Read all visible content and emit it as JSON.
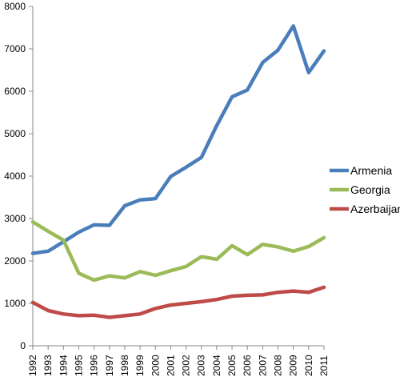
{
  "chart_data": {
    "type": "line",
    "title": "",
    "xlabel": "",
    "ylabel": "",
    "x": [
      "1992",
      "1993",
      "1994",
      "1995",
      "1996",
      "1997",
      "1998",
      "1999",
      "2000",
      "2001",
      "2002",
      "2003",
      "2004",
      "2005",
      "2006",
      "2007",
      "2008",
      "2009",
      "2010",
      "2011"
    ],
    "ylim": [
      0,
      8000
    ],
    "yticks": [
      0,
      1000,
      2000,
      3000,
      4000,
      5000,
      6000,
      7000,
      8000
    ],
    "grid": false,
    "legend_position": "right",
    "series": [
      {
        "name": "Armenia",
        "color": "#4a7ebb",
        "values": [
          2180,
          2230,
          2450,
          2680,
          2850,
          2840,
          3300,
          3440,
          3470,
          3990,
          4210,
          4440,
          5190,
          5870,
          6030,
          6680,
          6970,
          7540,
          6440,
          6950
        ]
      },
      {
        "name": "Georgia",
        "color": "#9bbb59",
        "values": [
          2920,
          2700,
          2490,
          1710,
          1550,
          1650,
          1600,
          1750,
          1660,
          1770,
          1870,
          2100,
          2040,
          2360,
          2150,
          2390,
          2330,
          2230,
          2340,
          2550
        ]
      },
      {
        "name": "Azerbaijan",
        "color": "#be4b48",
        "values": [
          1020,
          830,
          750,
          710,
          720,
          670,
          710,
          750,
          880,
          960,
          1000,
          1040,
          1090,
          1170,
          1190,
          1200,
          1260,
          1290,
          1260,
          1380
        ]
      }
    ]
  }
}
